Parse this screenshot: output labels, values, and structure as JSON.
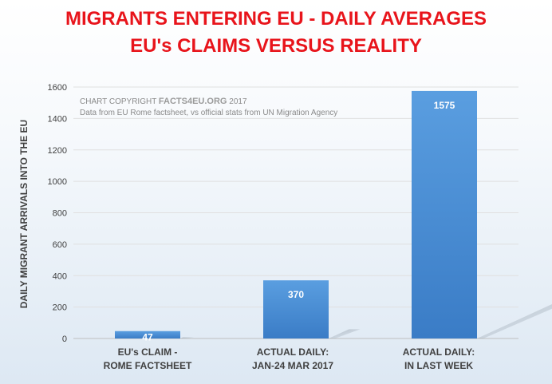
{
  "chart_data": {
    "type": "bar",
    "title": "MIGRANTS ENTERING EU - DAILY AVERAGES",
    "subtitle": "EU's CLAIMS VERSUS REALITY",
    "ylabel": "DAILY MIGRANT ARRIVALS INTO THE EU",
    "xlabel": "",
    "ylim": [
      0,
      1600
    ],
    "yticks": [
      0,
      200,
      400,
      600,
      800,
      1000,
      1200,
      1400,
      1600
    ],
    "grid": true,
    "categories": [
      [
        "EU's CLAIM -",
        "ROME FACTSHEET"
      ],
      [
        "ACTUAL DAILY:",
        "JAN-24 MAR 2017"
      ],
      [
        "ACTUAL DAILY:",
        "IN LAST WEEK"
      ]
    ],
    "values": [
      47,
      370,
      1575
    ],
    "data_labels": [
      "47",
      "370",
      "1575"
    ],
    "bar_color": "#4a8fd4"
  },
  "annotation": {
    "copyright_prefix": "CHART COPYRIGHT ",
    "copyright_brand": "FACTS4EU.ORG",
    "copyright_suffix": " 2017",
    "source": "Data from EU Rome factsheet, vs official stats from UN Migration Agency"
  }
}
